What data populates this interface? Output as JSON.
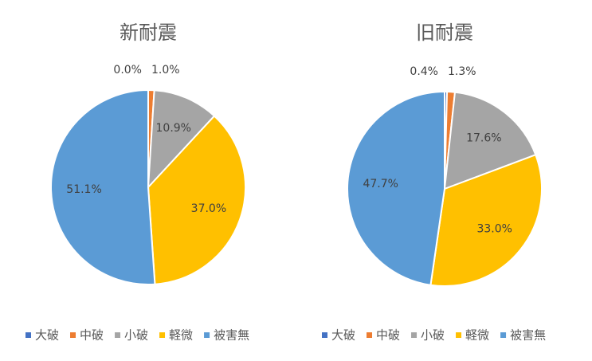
{
  "chart_data": [
    {
      "type": "pie",
      "title": "新耐震",
      "categories": [
        "大破",
        "中破",
        "小破",
        "軽微",
        "被害無"
      ],
      "values": [
        0,
        1.0,
        10.9,
        37.0,
        51.1
      ],
      "value_labels": [
        "0.0%",
        "1.0%",
        "10.9%",
        "37.0%",
        "51.1%"
      ],
      "colors": [
        "#4472c4",
        "#ed7d31",
        "#a5a5a5",
        "#ffc000",
        "#5b9bd5"
      ]
    },
    {
      "type": "pie",
      "title": "旧耐震",
      "categories": [
        "大破",
        "中破",
        "小破",
        "軽微",
        "被害無"
      ],
      "values": [
        0.4,
        1.3,
        17.6,
        33.0,
        47.7
      ],
      "value_labels": [
        "0.4%",
        "1.3%",
        "17.6%",
        "33.0%",
        "47.7%"
      ],
      "colors": [
        "#4472c4",
        "#ed7d31",
        "#a5a5a5",
        "#ffc000",
        "#5b9bd5"
      ]
    }
  ]
}
